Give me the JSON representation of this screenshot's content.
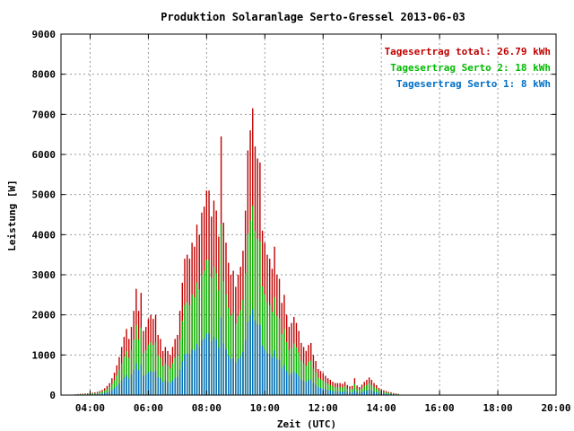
{
  "chart_data": {
    "type": "bar",
    "title": "Produktion Solaranlage Serto-Gressel 2013-06-03",
    "xlabel": "Zeit (UTC)",
    "ylabel": "Leistung [W]",
    "xlim_hours": [
      3.0,
      20.0
    ],
    "ylim": [
      0,
      9000
    ],
    "x_ticks": [
      "04:00",
      "06:00",
      "08:00",
      "10:00",
      "12:00",
      "14:00",
      "16:00",
      "18:00",
      "20:00"
    ],
    "y_ticks": [
      "0",
      "1000",
      "2000",
      "3000",
      "4000",
      "5000",
      "6000",
      "7000",
      "8000",
      "9000"
    ],
    "grid": true,
    "legend_position": "top-right",
    "legend": [
      {
        "label": "Tagesertrag total: 26.79 kWh",
        "color": "#c00000"
      },
      {
        "label": "Tagesertrag Serto 2: 18 kWh",
        "color": "#00bb00"
      },
      {
        "label": "Tagesertrag Serto 1: 8 kWh",
        "color": "#0070c8"
      }
    ],
    "interval_minutes": 5,
    "series": [
      {
        "name": "total",
        "color": "#c00000",
        "values": [
          20,
          25,
          30,
          35,
          40,
          45,
          50,
          60,
          70,
          80,
          100,
          130,
          170,
          230,
          300,
          420,
          560,
          740,
          950,
          1200,
          1450,
          1650,
          1400,
          1700,
          2100,
          2650,
          2100,
          2550,
          1600,
          1700,
          1900,
          2000,
          1900,
          2000,
          1500,
          1400,
          1100,
          1200,
          1100,
          1000,
          1200,
          1400,
          1500,
          2100,
          2800,
          3400,
          3500,
          3400,
          3800,
          3700,
          4250,
          4000,
          4550,
          4700,
          5100,
          5100,
          4450,
          4850,
          4600,
          3950,
          6450,
          4300,
          3800,
          3300,
          3000,
          3100,
          2700,
          3000,
          3200,
          3600,
          4600,
          6100,
          6600,
          7150,
          6200,
          5900,
          5800,
          4100,
          3800,
          3500,
          3400,
          3150,
          3700,
          3000,
          2900,
          2300,
          2500,
          2000,
          1700,
          1800,
          1950,
          1800,
          1600,
          1300,
          1200,
          1100,
          1250,
          1300,
          1000,
          850,
          650,
          600,
          550,
          480,
          420,
          380,
          330,
          300,
          300,
          300,
          280,
          330,
          250,
          220,
          230,
          420,
          240,
          200,
          260,
          330,
          380,
          440,
          380,
          300,
          250,
          180,
          150,
          120,
          100,
          80,
          70,
          50,
          40,
          30
        ]
      },
      {
        "name": "Serto 2",
        "color": "#00bb00",
        "values": [
          13,
          17,
          20,
          23,
          27,
          30,
          33,
          40,
          47,
          53,
          66,
          86,
          112,
          152,
          198,
          277,
          370,
          488,
          627,
          792,
          957,
          1089,
          924,
          1122,
          1386,
          1749,
          1386,
          1683,
          1056,
          1122,
          1254,
          1320,
          1254,
          1320,
          990,
          924,
          726,
          792,
          726,
          660,
          792,
          924,
          990,
          1386,
          1848,
          2244,
          2310,
          2244,
          2508,
          2442,
          2805,
          2640,
          3003,
          3102,
          3366,
          3366,
          2937,
          3201,
          3036,
          2607,
          4257,
          2838,
          2508,
          2178,
          1980,
          2046,
          1782,
          1980,
          2112,
          2376,
          3036,
          4026,
          4356,
          4719,
          4092,
          3894,
          3828,
          2706,
          2508,
          2310,
          2244,
          2079,
          2442,
          1980,
          1914,
          1518,
          1650,
          1320,
          1122,
          1188,
          1287,
          1188,
          1056,
          858,
          792,
          726,
          825,
          858,
          660,
          561,
          429,
          396,
          363,
          317,
          277,
          251,
          218,
          198,
          198,
          198,
          185,
          218,
          165,
          145,
          152,
          277,
          158,
          132,
          172,
          218,
          251,
          290,
          251,
          198,
          165,
          119,
          99,
          79,
          66,
          53,
          46,
          33,
          26,
          20
        ]
      },
      {
        "name": "Serto 1",
        "color": "#0070c8",
        "values": [
          6,
          8,
          9,
          11,
          12,
          14,
          15,
          18,
          21,
          24,
          30,
          39,
          51,
          69,
          90,
          126,
          168,
          222,
          285,
          360,
          435,
          495,
          420,
          510,
          630,
          795,
          630,
          765,
          480,
          510,
          570,
          600,
          570,
          600,
          450,
          420,
          330,
          360,
          330,
          300,
          360,
          420,
          450,
          630,
          840,
          1020,
          1050,
          1020,
          1140,
          1110,
          1275,
          1200,
          1365,
          1410,
          1530,
          1530,
          1335,
          1455,
          1380,
          1185,
          1935,
          1290,
          1140,
          990,
          900,
          930,
          810,
          900,
          960,
          1080,
          1380,
          1830,
          1980,
          2145,
          1860,
          1770,
          1740,
          1230,
          1140,
          1050,
          1020,
          945,
          1110,
          900,
          870,
          690,
          750,
          600,
          510,
          540,
          585,
          540,
          480,
          390,
          360,
          330,
          375,
          390,
          300,
          255,
          195,
          180,
          165,
          144,
          126,
          114,
          99,
          90,
          90,
          90,
          84,
          99,
          75,
          66,
          69,
          126,
          72,
          60,
          78,
          99,
          114,
          132,
          114,
          90,
          75,
          54,
          45,
          36,
          30,
          24,
          21,
          15,
          12,
          9
        ]
      }
    ]
  }
}
